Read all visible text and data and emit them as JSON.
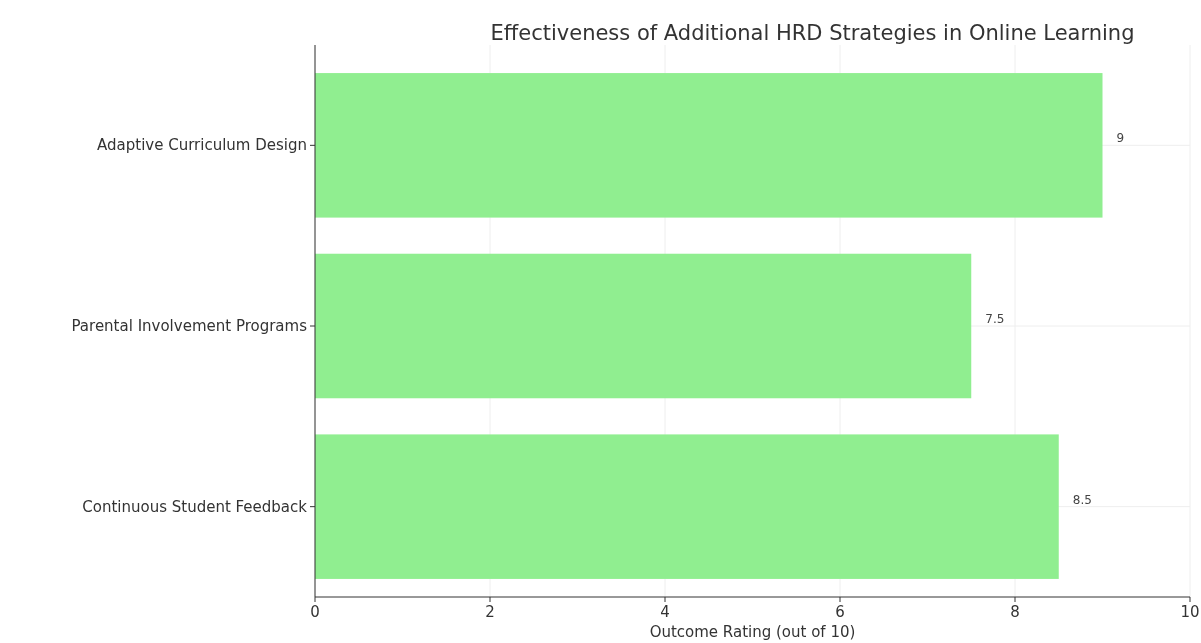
{
  "chart_data": {
    "type": "bar",
    "orientation": "horizontal",
    "title": "Effectiveness of Additional HRD Strategies in Online Learning",
    "xlabel": "Outcome Rating (out of 10)",
    "categories": [
      "Adaptive Curriculum Design",
      "Parental Involvement Programs",
      "Continuous Student Feedback"
    ],
    "values": [
      9,
      7.5,
      8.5
    ],
    "color": "#90ee90",
    "xlim": [
      0,
      10
    ],
    "xticks": [
      0,
      2,
      4,
      6,
      8,
      10
    ],
    "grid": true,
    "data_labels": true
  }
}
